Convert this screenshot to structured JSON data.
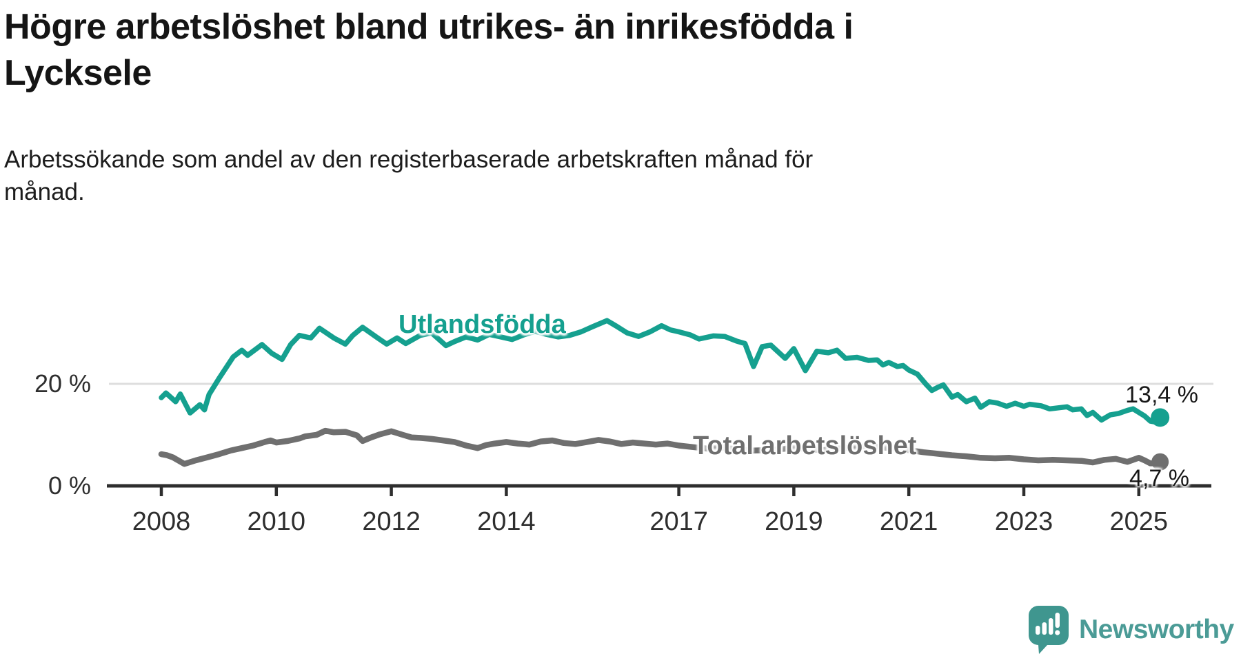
{
  "header": {
    "title": "Högre arbetslöshet bland utrikes- än inrikesfödda i Lycksele",
    "title_lines": [
      "Högre arbetslöshet bland utrikes- än inrikesfödda i",
      "Lycksele"
    ],
    "subtitle": "Arbetssökande som andel av den registerbaserade arbetskraften månad för månad.",
    "subtitle_lines": [
      "Arbetssökande som andel av den registerbaserade arbetskraften månad för",
      "månad."
    ]
  },
  "branding": {
    "logo_text": "Newsworthy",
    "logo_icon": "speech-bubble-bar-chart-icon",
    "logo_color": "#4b9b96",
    "logo_bubble_color": "#3f968f"
  },
  "colors": {
    "utlandsfodda_line": "#15a08f",
    "total_line": "#6f6f6f",
    "axis": "#2e2e2e",
    "gridline": "#dedede",
    "value_label": "#171717",
    "background": "#ffffff"
  },
  "chart_data": {
    "type": "line",
    "title": "Högre arbetslöshet bland utrikes- än inrikesfödda i Lycksele",
    "subtitle": "Arbetssökande som andel av den registerbaserade arbetskraften månad för månad.",
    "unit": "%",
    "x_axis": {
      "tick_values": [
        2008,
        2010,
        2012,
        2014,
        2017,
        2019,
        2021,
        2023,
        2025
      ],
      "tick_labels": [
        "2008",
        "2010",
        "2012",
        "2014",
        "2017",
        "2019",
        "2021",
        "2023",
        "2025"
      ],
      "range": [
        2007.05,
        2026.25
      ]
    },
    "y_axis": {
      "tick_values": [
        0,
        20
      ],
      "tick_labels": [
        "0 %",
        "20 %"
      ],
      "range": [
        0,
        42
      ]
    },
    "grid": {
      "horizontal_at": [
        20
      ]
    },
    "legend_position": "inline-labels",
    "series": [
      {
        "name": "Utlandsfödda",
        "color": "#15a08f",
        "end_value": 13.4,
        "end_label": "13,4 %",
        "points": [
          [
            2008.0,
            17.3
          ],
          [
            2008.08,
            18.2
          ],
          [
            2008.25,
            16.5
          ],
          [
            2008.33,
            18.0
          ],
          [
            2008.5,
            14.3
          ],
          [
            2008.67,
            15.9
          ],
          [
            2008.75,
            14.9
          ],
          [
            2008.83,
            17.9
          ],
          [
            2009.0,
            21.0
          ],
          [
            2009.25,
            25.3
          ],
          [
            2009.4,
            26.6
          ],
          [
            2009.5,
            25.6
          ],
          [
            2009.75,
            27.7
          ],
          [
            2009.92,
            26.0
          ],
          [
            2010.1,
            24.8
          ],
          [
            2010.25,
            27.7
          ],
          [
            2010.4,
            29.5
          ],
          [
            2010.6,
            29.0
          ],
          [
            2010.75,
            30.9
          ],
          [
            2011.0,
            29.0
          ],
          [
            2011.2,
            27.8
          ],
          [
            2011.33,
            29.5
          ],
          [
            2011.5,
            31.1
          ],
          [
            2011.75,
            29.1
          ],
          [
            2011.92,
            27.8
          ],
          [
            2012.1,
            29.0
          ],
          [
            2012.25,
            27.9
          ],
          [
            2012.5,
            29.5
          ],
          [
            2012.7,
            30.0
          ],
          [
            2012.95,
            27.5
          ],
          [
            2013.1,
            28.3
          ],
          [
            2013.3,
            29.2
          ],
          [
            2013.5,
            28.6
          ],
          [
            2013.7,
            29.7
          ],
          [
            2013.9,
            29.2
          ],
          [
            2014.1,
            28.7
          ],
          [
            2014.3,
            29.6
          ],
          [
            2014.5,
            30.3
          ],
          [
            2014.7,
            29.7
          ],
          [
            2014.9,
            29.2
          ],
          [
            2015.1,
            29.5
          ],
          [
            2015.3,
            30.2
          ],
          [
            2015.5,
            31.2
          ],
          [
            2015.75,
            32.4
          ],
          [
            2015.9,
            31.4
          ],
          [
            2016.1,
            30.0
          ],
          [
            2016.3,
            29.3
          ],
          [
            2016.5,
            30.2
          ],
          [
            2016.7,
            31.4
          ],
          [
            2016.85,
            30.6
          ],
          [
            2017.0,
            30.2
          ],
          [
            2017.2,
            29.6
          ],
          [
            2017.35,
            28.8
          ],
          [
            2017.6,
            29.4
          ],
          [
            2017.8,
            29.3
          ],
          [
            2018.0,
            28.4
          ],
          [
            2018.15,
            27.9
          ],
          [
            2018.3,
            23.4
          ],
          [
            2018.45,
            27.3
          ],
          [
            2018.6,
            27.6
          ],
          [
            2018.85,
            25.0
          ],
          [
            2019.0,
            26.9
          ],
          [
            2019.2,
            22.6
          ],
          [
            2019.4,
            26.4
          ],
          [
            2019.6,
            26.1
          ],
          [
            2019.75,
            26.6
          ],
          [
            2019.9,
            25.0
          ],
          [
            2020.1,
            25.2
          ],
          [
            2020.3,
            24.6
          ],
          [
            2020.45,
            24.7
          ],
          [
            2020.55,
            23.7
          ],
          [
            2020.65,
            24.2
          ],
          [
            2020.8,
            23.4
          ],
          [
            2020.9,
            23.6
          ],
          [
            2021.0,
            22.7
          ],
          [
            2021.15,
            21.9
          ],
          [
            2021.3,
            19.9
          ],
          [
            2021.4,
            18.7
          ],
          [
            2021.5,
            19.3
          ],
          [
            2021.6,
            19.8
          ],
          [
            2021.75,
            17.4
          ],
          [
            2021.85,
            17.9
          ],
          [
            2022.0,
            16.5
          ],
          [
            2022.15,
            17.2
          ],
          [
            2022.25,
            15.4
          ],
          [
            2022.4,
            16.5
          ],
          [
            2022.55,
            16.2
          ],
          [
            2022.7,
            15.6
          ],
          [
            2022.85,
            16.2
          ],
          [
            2023.0,
            15.6
          ],
          [
            2023.1,
            16.0
          ],
          [
            2023.3,
            15.7
          ],
          [
            2023.45,
            15.1
          ],
          [
            2023.6,
            15.3
          ],
          [
            2023.75,
            15.5
          ],
          [
            2023.85,
            14.9
          ],
          [
            2024.0,
            15.1
          ],
          [
            2024.1,
            13.8
          ],
          [
            2024.2,
            14.4
          ],
          [
            2024.35,
            12.9
          ],
          [
            2024.5,
            13.9
          ],
          [
            2024.65,
            14.2
          ],
          [
            2024.8,
            14.8
          ],
          [
            2024.9,
            15.1
          ],
          [
            2025.0,
            14.4
          ],
          [
            2025.1,
            13.7
          ],
          [
            2025.2,
            12.7
          ],
          [
            2025.3,
            12.5
          ],
          [
            2025.37,
            13.4
          ]
        ]
      },
      {
        "name": "Total arbetslöshet",
        "color": "#6f6f6f",
        "end_value": 4.7,
        "end_label": "4,7 %",
        "points": [
          [
            2008.0,
            6.2
          ],
          [
            2008.1,
            6.0
          ],
          [
            2008.2,
            5.6
          ],
          [
            2008.4,
            4.3
          ],
          [
            2008.6,
            5.0
          ],
          [
            2008.8,
            5.6
          ],
          [
            2009.0,
            6.2
          ],
          [
            2009.2,
            6.9
          ],
          [
            2009.4,
            7.4
          ],
          [
            2009.6,
            7.9
          ],
          [
            2009.8,
            8.6
          ],
          [
            2009.9,
            8.9
          ],
          [
            2010.0,
            8.5
          ],
          [
            2010.2,
            8.8
          ],
          [
            2010.4,
            9.3
          ],
          [
            2010.5,
            9.7
          ],
          [
            2010.7,
            10.0
          ],
          [
            2010.85,
            10.8
          ],
          [
            2011.0,
            10.5
          ],
          [
            2011.2,
            10.6
          ],
          [
            2011.4,
            9.9
          ],
          [
            2011.5,
            8.8
          ],
          [
            2011.65,
            9.5
          ],
          [
            2011.8,
            10.1
          ],
          [
            2012.0,
            10.7
          ],
          [
            2012.2,
            10.0
          ],
          [
            2012.35,
            9.5
          ],
          [
            2012.5,
            9.4
          ],
          [
            2012.7,
            9.2
          ],
          [
            2012.9,
            8.9
          ],
          [
            2013.1,
            8.6
          ],
          [
            2013.3,
            7.9
          ],
          [
            2013.5,
            7.4
          ],
          [
            2013.65,
            8.0
          ],
          [
            2013.8,
            8.3
          ],
          [
            2014.0,
            8.6
          ],
          [
            2014.2,
            8.3
          ],
          [
            2014.4,
            8.1
          ],
          [
            2014.6,
            8.7
          ],
          [
            2014.8,
            8.9
          ],
          [
            2015.0,
            8.4
          ],
          [
            2015.2,
            8.2
          ],
          [
            2015.4,
            8.6
          ],
          [
            2015.6,
            9.0
          ],
          [
            2015.8,
            8.7
          ],
          [
            2016.0,
            8.2
          ],
          [
            2016.2,
            8.5
          ],
          [
            2016.4,
            8.3
          ],
          [
            2016.6,
            8.1
          ],
          [
            2016.8,
            8.3
          ],
          [
            2017.0,
            7.9
          ],
          [
            2017.25,
            7.6
          ],
          [
            2017.5,
            7.3
          ],
          [
            2017.75,
            7.5
          ],
          [
            2018.0,
            7.2
          ],
          [
            2018.25,
            6.9
          ],
          [
            2018.5,
            7.0
          ],
          [
            2018.75,
            7.2
          ],
          [
            2019.0,
            7.4
          ],
          [
            2019.25,
            7.2
          ],
          [
            2019.5,
            7.0
          ],
          [
            2019.75,
            7.3
          ],
          [
            2020.0,
            7.5
          ],
          [
            2020.25,
            7.8
          ],
          [
            2020.5,
            7.6
          ],
          [
            2020.75,
            7.3
          ],
          [
            2021.0,
            7.0
          ],
          [
            2021.25,
            6.6
          ],
          [
            2021.5,
            6.3
          ],
          [
            2021.75,
            6.0
          ],
          [
            2022.0,
            5.8
          ],
          [
            2022.25,
            5.5
          ],
          [
            2022.5,
            5.4
          ],
          [
            2022.75,
            5.5
          ],
          [
            2023.0,
            5.2
          ],
          [
            2023.25,
            5.0
          ],
          [
            2023.5,
            5.1
          ],
          [
            2023.75,
            5.0
          ],
          [
            2024.0,
            4.9
          ],
          [
            2024.2,
            4.6
          ],
          [
            2024.4,
            5.1
          ],
          [
            2024.6,
            5.3
          ],
          [
            2024.8,
            4.7
          ],
          [
            2025.0,
            5.5
          ],
          [
            2025.1,
            5.0
          ],
          [
            2025.2,
            4.4
          ],
          [
            2025.3,
            4.4
          ],
          [
            2025.37,
            4.7
          ]
        ]
      }
    ]
  }
}
